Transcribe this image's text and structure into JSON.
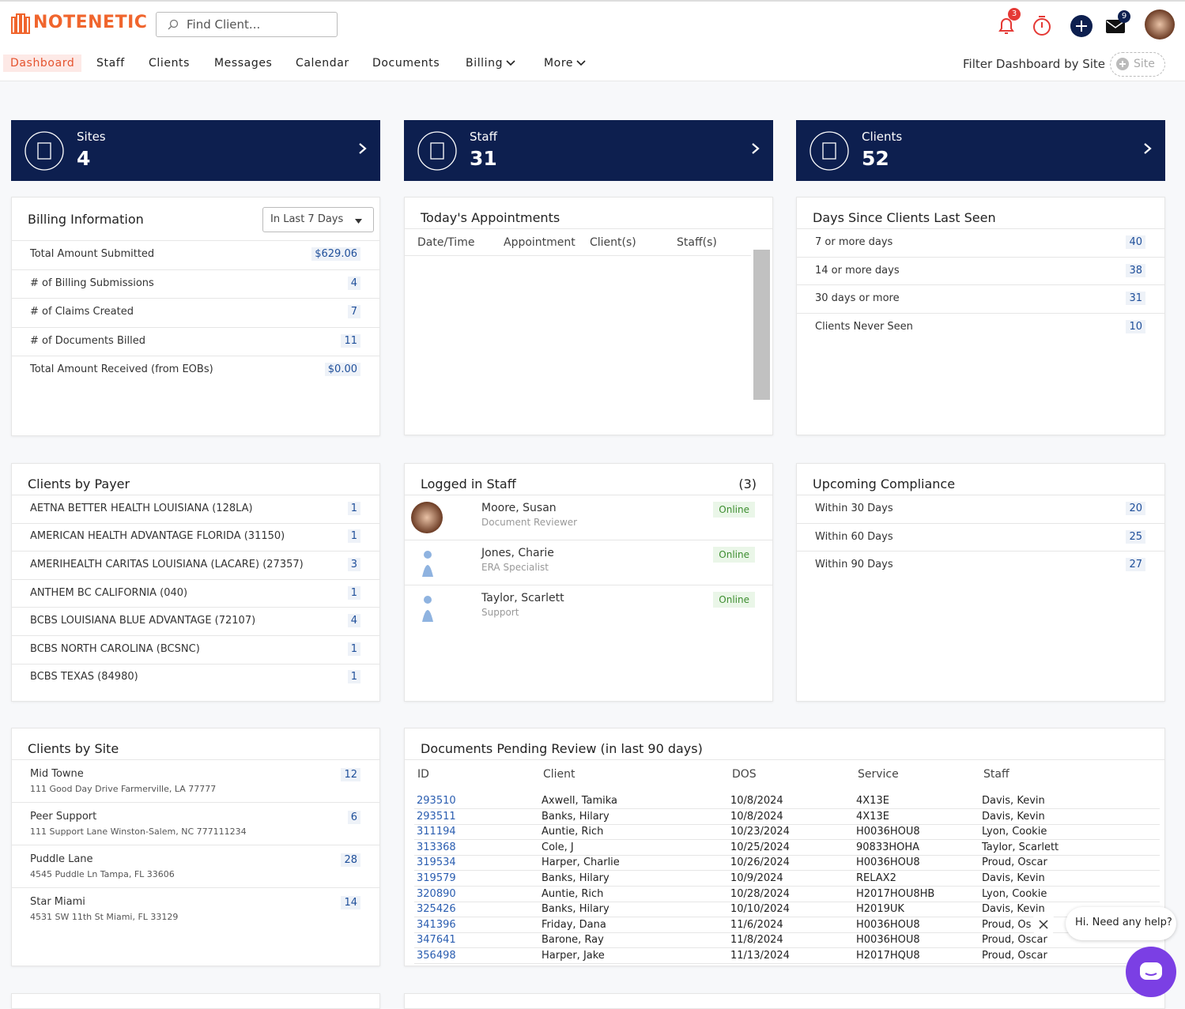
{
  "header": {
    "logo": "NOTENETIC",
    "search_placeholder": "Find Client...",
    "notifications": 3,
    "messages": 9
  },
  "nav": {
    "items": [
      "Dashboard",
      "Staff",
      "Clients",
      "Messages",
      "Calendar",
      "Documents",
      "Billing",
      "More"
    ],
    "filter_label": "Filter Dashboard by Site",
    "site_placeholder": "Site"
  },
  "summary": [
    {
      "label": "Sites",
      "value": 4
    },
    {
      "label": "Staff",
      "value": 31
    },
    {
      "label": "Clients",
      "value": 52
    }
  ],
  "billing": {
    "title": "Billing Information",
    "period": "In Last 7 Days",
    "rows": [
      [
        "Total Amount Submitted",
        "$629.06"
      ],
      [
        "# of Billing Submissions",
        4
      ],
      [
        "# of Claims Created",
        7
      ],
      [
        "# of Documents Billed",
        11
      ],
      [
        "Total Amount Received (from EOBs)",
        "$0.00"
      ]
    ]
  },
  "appointments": {
    "title": "Today's Appointments",
    "columns": [
      "Date/Time",
      "Appointment",
      "Client(s)",
      "Staff(s)"
    ]
  },
  "last_seen": {
    "title": "Days Since Clients Last Seen",
    "rows": [
      [
        "7 or more days",
        40
      ],
      [
        "14 or more days",
        38
      ],
      [
        "30 days or more",
        31
      ],
      [
        "Clients Never Seen",
        10
      ]
    ]
  },
  "payers": {
    "title": "Clients by Payer",
    "rows": [
      [
        "AETNA BETTER HEALTH LOUISIANA (128LA)",
        1
      ],
      [
        "AMERICAN HEALTH ADVANTAGE FLORIDA (31150)",
        1
      ],
      [
        "AMERIHEALTH CARITAS LOUISIANA (LACARE) (27357)",
        3
      ],
      [
        "ANTHEM BC CALIFORNIA (040)",
        1
      ],
      [
        "BCBS LOUISIANA BLUE ADVANTAGE (72107)",
        4
      ],
      [
        "BCBS NORTH CAROLINA (BCSNC)",
        1
      ],
      [
        "BCBS TEXAS (84980)",
        1
      ]
    ]
  },
  "logged_in": {
    "title": "Logged in Staff",
    "count": "(3)",
    "staff": [
      {
        "name": "Moore, Susan",
        "role": "Document Reviewer",
        "status": "Online"
      },
      {
        "name": "Jones, Charie",
        "role": "ERA Specialist",
        "status": "Online"
      },
      {
        "name": "Taylor, Scarlett",
        "role": "Support",
        "status": "Online"
      }
    ]
  },
  "compliance": {
    "title": "Upcoming Compliance",
    "rows": [
      [
        "Within 30 Days",
        20
      ],
      [
        "Within 60 Days",
        25
      ],
      [
        "Within 90 Days",
        27
      ]
    ]
  },
  "sites": {
    "title": "Clients by Site",
    "rows": [
      {
        "name": "Mid Towne",
        "address": "111 Good Day Drive Farmerville, LA 77777",
        "count": 12
      },
      {
        "name": "Peer Support",
        "address": "111 Support Lane Winston-Salem, NC 777111234",
        "count": 6
      },
      {
        "name": "Puddle Lane",
        "address": "4545 Puddle Ln Tampa, FL 33606",
        "count": 28
      },
      {
        "name": "Star Miami",
        "address": "4531 SW 11th St Miami, FL 33129",
        "count": 14
      }
    ]
  },
  "pending": {
    "title": "Documents Pending Review (in last 90 days)",
    "columns": [
      "ID",
      "Client",
      "DOS",
      "Service",
      "Staff"
    ],
    "rows": [
      [
        "293510",
        "Axwell, Tamika",
        "10/8/2024",
        "4X13E",
        "Davis, Kevin"
      ],
      [
        "293511",
        "Banks, Hilary",
        "10/8/2024",
        "4X13E",
        "Davis, Kevin"
      ],
      [
        "311194",
        "Auntie, Rich",
        "10/23/2024",
        "H0036HOU8",
        "Lyon, Cookie"
      ],
      [
        "313368",
        "Cole, J",
        "10/25/2024",
        "90833HOHA",
        "Taylor, Scarlett"
      ],
      [
        "319534",
        "Harper, Charlie",
        "10/26/2024",
        "H0036HOU8",
        "Proud, Oscar"
      ],
      [
        "319579",
        "Banks, Hilary",
        "10/9/2024",
        "RELAX2",
        "Davis, Kevin"
      ],
      [
        "320890",
        "Auntie, Rich",
        "10/28/2024",
        "H2017HOU8HB",
        "Lyon, Cookie"
      ],
      [
        "325426",
        "Banks, Hilary",
        "10/10/2024",
        "H2019UK",
        "Davis, Kevin"
      ],
      [
        "341396",
        "Friday, Dana",
        "11/6/2024",
        "H0036HOU8",
        "Proud, Oscar"
      ],
      [
        "347641",
        "Barone, Ray",
        "11/8/2024",
        "H0036HOU8",
        "Proud, Oscar"
      ],
      [
        "356498",
        "Harper, Jake",
        "11/13/2024",
        "H2017HQU8",
        "Proud, Oscar"
      ]
    ]
  },
  "chat": {
    "message": "Hi. Need any help?"
  }
}
